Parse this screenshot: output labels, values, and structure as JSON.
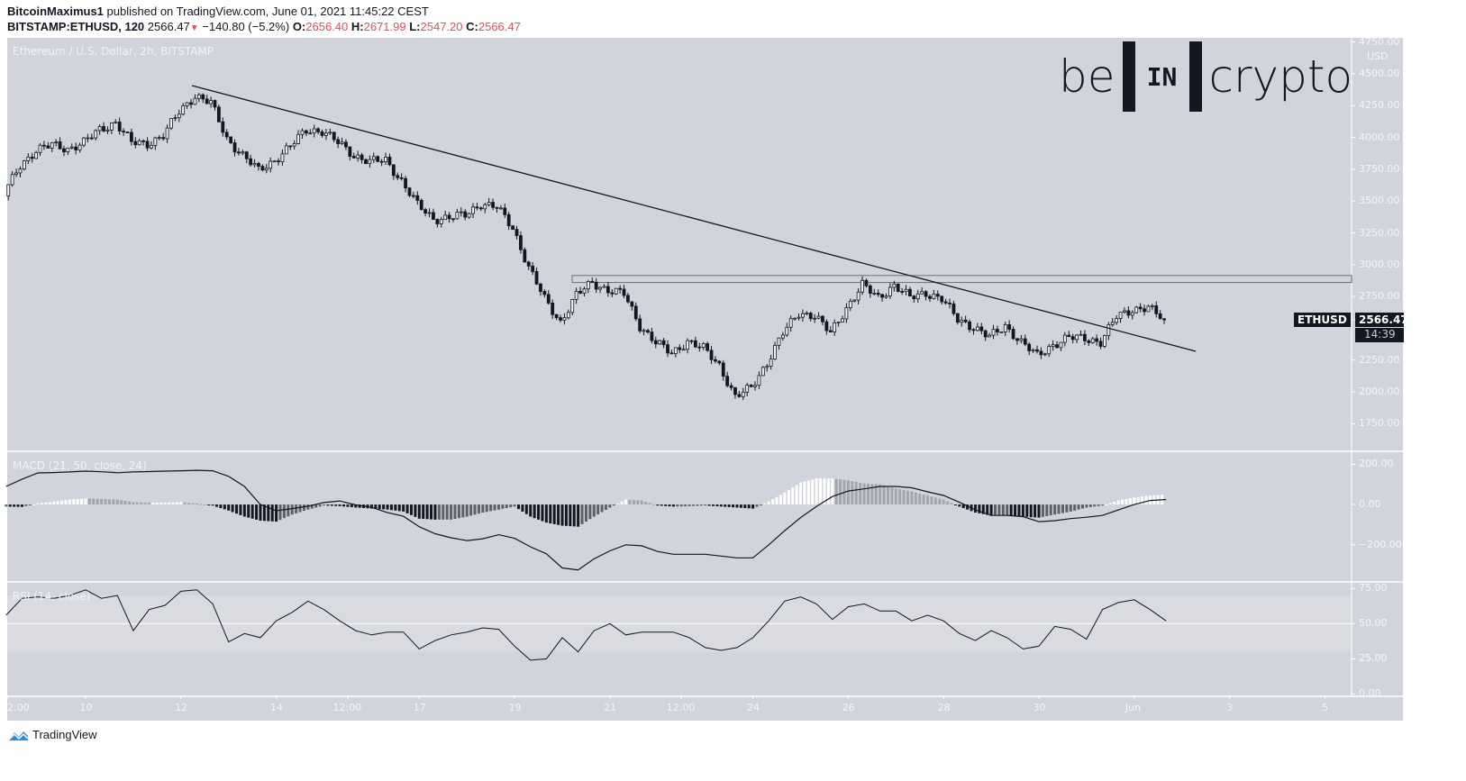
{
  "header": {
    "author": "BitcoinMaximus1",
    "published": "published on TradingView.com, June 01, 2021 11:45:22 CEST",
    "symbol": "BITSTAMP:ETHUSD, 120",
    "last": "2566.47",
    "change": "−140.80 (−5.2%)",
    "o_label": "O:",
    "o": "2656.40",
    "h_label": "H:",
    "h": "2671.99",
    "l_label": "L:",
    "l": "2547.20",
    "c_label": "C:",
    "c": "2566.47",
    "direction_icon": "triangle-down-icon"
  },
  "logo": {
    "left": "be",
    "mid": "IN",
    "right": "crypto"
  },
  "footer": {
    "brand": "TradingView",
    "icon": "tradingview-cloud-icon"
  },
  "colors": {
    "background": "#d1d4dc",
    "candle_down": "#131722",
    "candle_up": "#f0f2f5",
    "header_values": "#e0525a"
  },
  "chart_data": [
    {
      "type": "candlestick",
      "title": "Ethereum / U.S. Dollar, 2h, BITSTAMP",
      "ylabel": "USD",
      "ylim": [
        1540,
        4783
      ],
      "yticks": [
        "4750.00",
        "4500.00",
        "4250.00",
        "4000.00",
        "3750.00",
        "3500.00",
        "3250.00",
        "3000.00",
        "2750.00",
        "2250.00",
        "2000.00",
        "1750.00"
      ],
      "ytick_values": [
        4750,
        4500,
        4250,
        4000,
        3750,
        3500,
        3250,
        3000,
        2750,
        2250,
        2000,
        1750
      ],
      "xticks": [
        "2:00",
        "10",
        "12",
        "14",
        "12:00",
        "17",
        "19",
        "21",
        "12:00",
        "24",
        "26",
        "28",
        "30",
        "Jun",
        "3",
        "5"
      ],
      "xtick_dates": [
        "2021-05-08T02:00",
        "2021-05-10T00:00",
        "2021-05-12T00:00",
        "2021-05-14T00:00",
        "2021-05-15T12:00",
        "2021-05-17T00:00",
        "2021-05-19T00:00",
        "2021-05-21T00:00",
        "2021-05-22T12:00",
        "2021-05-24T00:00",
        "2021-05-26T00:00",
        "2021-05-28T00:00",
        "2021-05-30T00:00",
        "2021-06-01T00:00",
        "2021-06-03T00:00",
        "2021-06-05T00:00"
      ],
      "bar_interval": "2h",
      "close_start": "2021-05-08T08:00",
      "close_step_hours": 8,
      "closes": [
        3560,
        3780,
        3900,
        3940,
        3910,
        3960,
        4060,
        4120,
        3960,
        3950,
        4015,
        4200,
        4330,
        4270,
        3990,
        3860,
        3740,
        3820,
        3930,
        4060,
        4050,
        3960,
        3860,
        3810,
        3820,
        3660,
        3470,
        3360,
        3370,
        3390,
        3480,
        3450,
        3290,
        2980,
        2730,
        2550,
        2760,
        2860,
        2800,
        2770,
        2520,
        2390,
        2300,
        2400,
        2340,
        2210,
        1960,
        2030,
        2230,
        2460,
        2620,
        2600,
        2460,
        2660,
        2840,
        2740,
        2840,
        2740,
        2780,
        2730,
        2570,
        2510,
        2430,
        2520,
        2390,
        2285,
        2370,
        2425,
        2425,
        2390,
        2590,
        2650,
        2660,
        2566.47
      ],
      "last_price_label": {
        "symbol": "ETHUSD",
        "price": "2566.47",
        "countdown": "14:39"
      },
      "trendline": {
        "start": [
          "2021-05-12T05:30",
          4408
        ],
        "end": [
          "2021-06-02T07:00",
          2319
        ]
      },
      "resistance_zone": {
        "start": "2021-05-20T05:00",
        "low": 2860,
        "high": 2915
      }
    },
    {
      "type": "macd",
      "title": "MACD (21, 50, close, 24)",
      "ylim": [
        -380,
        260
      ],
      "yticks": [
        "200.00",
        "0.00",
        "−200.00"
      ],
      "ytick_values": [
        200,
        0,
        -200
      ],
      "start": "2021-05-08T08:00",
      "step_hours": 8,
      "macd": [
        90,
        126,
        157,
        159,
        162,
        166,
        163,
        158,
        162,
        164,
        166,
        168,
        170,
        168,
        140,
        90,
        0,
        -31,
        -20,
        -8,
        10,
        18,
        -2,
        -14,
        -40,
        -58,
        -110,
        -145,
        -165,
        -179,
        -170,
        -150,
        -168,
        -210,
        -245,
        -315,
        -325,
        -270,
        -230,
        -200,
        -205,
        -233,
        -247,
        -247,
        -247,
        -256,
        -265,
        -265,
        -200,
        -130,
        -65,
        -10,
        40,
        67,
        78,
        90,
        90,
        83,
        63,
        45,
        11,
        -26,
        -54,
        -54,
        -60,
        -85,
        -80,
        -70,
        -63,
        -54,
        -27,
        0,
        20,
        25
      ],
      "histogram": [
        -10,
        -12,
        5,
        15,
        25,
        30,
        28,
        25,
        12,
        10,
        10,
        12,
        5,
        -5,
        -30,
        -60,
        -80,
        -85,
        -50,
        -25,
        -5,
        -8,
        -15,
        -20,
        -25,
        -35,
        -70,
        -75,
        -75,
        -60,
        -40,
        -25,
        -10,
        -60,
        -90,
        -105,
        -110,
        -60,
        -15,
        25,
        20,
        -5,
        -10,
        -8,
        -5,
        -10,
        -15,
        -20,
        15,
        60,
        110,
        130,
        130,
        120,
        105,
        100,
        80,
        65,
        45,
        25,
        -10,
        -40,
        -55,
        -55,
        -60,
        -65,
        -50,
        -35,
        -15,
        -5,
        20,
        35,
        45,
        50
      ]
    },
    {
      "type": "line",
      "title": "RSI (14, close)",
      "ylim": [
        -1,
        79
      ],
      "yticks": [
        "75.00",
        "50.00",
        "25.00",
        "0.00"
      ],
      "ytick_values": [
        75,
        50,
        25,
        0
      ],
      "band": [
        30,
        70
      ],
      "start": "2021-05-08T08:00",
      "step_hours": 8,
      "values": [
        56,
        68,
        69,
        68,
        70,
        74,
        68,
        70,
        45,
        60,
        63,
        73,
        74,
        64,
        37,
        43,
        40,
        52,
        58,
        66,
        60,
        52,
        45,
        42,
        44,
        44,
        32,
        38,
        42,
        44,
        47,
        46,
        34,
        24,
        25,
        40,
        30,
        45,
        50,
        42,
        44,
        44,
        44,
        40,
        33,
        31,
        33,
        40,
        52,
        66,
        69,
        64,
        53,
        62,
        64,
        59,
        59,
        52,
        56,
        52,
        43,
        38,
        45,
        40,
        32,
        34,
        48,
        46,
        39,
        60,
        65,
        67,
        60,
        52
      ]
    }
  ]
}
